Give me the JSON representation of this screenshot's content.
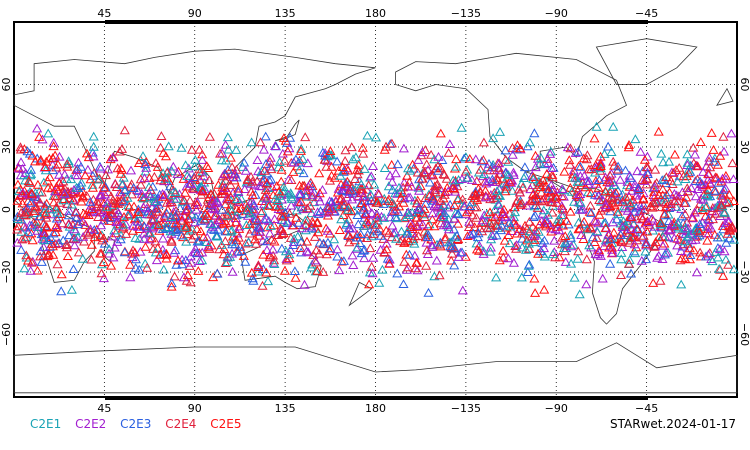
{
  "map": {
    "projection": "equirectangular, centered at 180",
    "lat_range": [
      -90,
      90
    ],
    "lon_center": 180,
    "graticule": "dotted"
  },
  "axes": {
    "top_lon_labels": [
      "45",
      "90",
      "135",
      "180",
      "−135",
      "−90",
      "−45"
    ],
    "bottom_lon_labels": [
      "45",
      "90",
      "135",
      "180",
      "−135",
      "−90",
      "−45"
    ],
    "lat_labels": [
      "60",
      "30",
      "0",
      "−30",
      "−60"
    ]
  },
  "legend": {
    "items": [
      {
        "label": "C2E1",
        "color": "#19a3b5"
      },
      {
        "label": "C2E2",
        "color": "#a21ed0"
      },
      {
        "label": "C2E3",
        "color": "#2a5fe0"
      },
      {
        "label": "C2E4",
        "color": "#e0203c"
      },
      {
        "label": "C2E5",
        "color": "#ff1010"
      }
    ]
  },
  "stamp": "STARwet.2024-01-17",
  "observations": {
    "marker": "triangle",
    "lat_band": [
      -45,
      45
    ],
    "note_density": "dense across tropics, all longitudes"
  }
}
